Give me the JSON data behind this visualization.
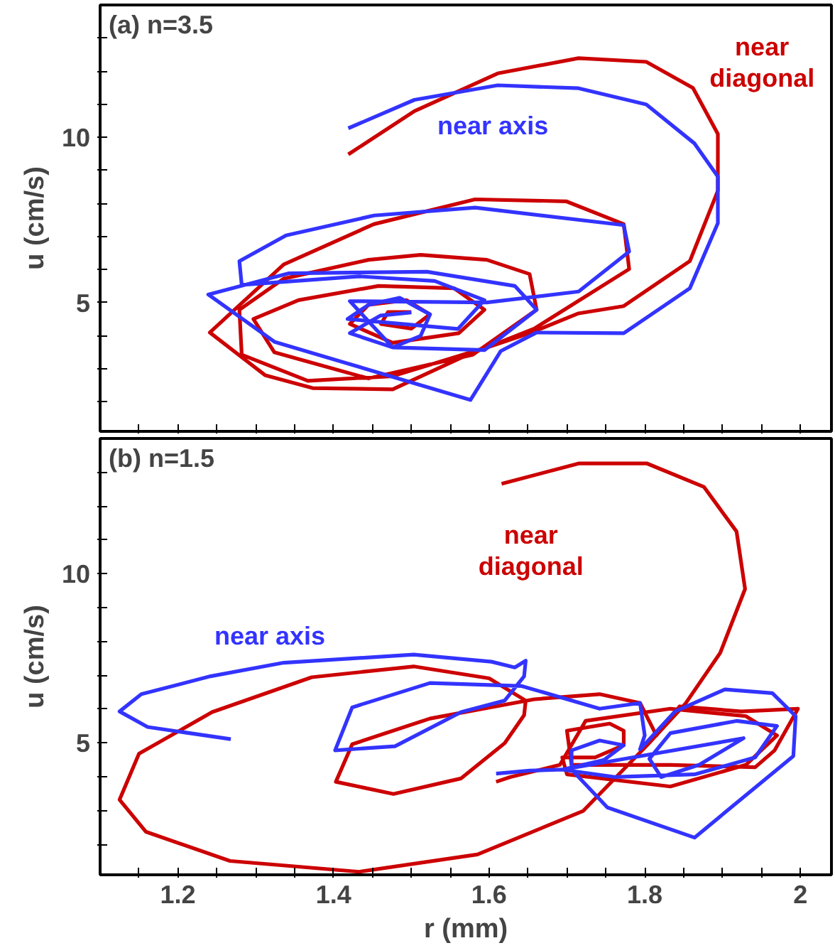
{
  "chart_data": [
    {
      "type": "line",
      "title": "(a) n=3.5",
      "ylabel": "u (cm/s)",
      "xlim": [
        1.1,
        2.04
      ],
      "ylim": [
        1.1,
        14.0
      ],
      "tick_labels": "y",
      "line_style": "solid",
      "xticks": [
        {
          "value": 1.15,
          "label": null
        },
        1.2,
        {
          "value": 1.25,
          "label": null
        },
        {
          "value": 1.3,
          "label": null
        },
        {
          "value": 1.35,
          "label": null
        },
        1.4,
        {
          "value": 1.45,
          "label": null
        },
        {
          "value": 1.5,
          "label": null
        },
        {
          "value": 1.55,
          "label": null
        },
        1.6,
        {
          "value": 1.65,
          "label": null
        },
        {
          "value": 1.7,
          "label": null
        },
        {
          "value": 1.75,
          "label": null
        },
        1.8,
        {
          "value": 1.85,
          "label": null
        },
        {
          "value": 1.9,
          "label": null
        },
        {
          "value": 1.95,
          "label": null
        },
        2
      ],
      "yticks": [
        {
          "value": 2,
          "label": null
        },
        {
          "value": 3,
          "label": null
        },
        {
          "value": 4,
          "label": null
        },
        5,
        {
          "value": 6,
          "label": null
        },
        {
          "value": 7,
          "label": null
        },
        {
          "value": 8,
          "label": null
        },
        {
          "value": 9,
          "label": null
        },
        10,
        {
          "value": 11,
          "label": null
        },
        {
          "value": 12,
          "label": null
        },
        {
          "value": 13,
          "label": null
        }
      ],
      "annotations": [
        "near diagonal",
        "near axis"
      ],
      "series": [
        {
          "color": "#cc0000",
          "x": [
            1.419,
            1.504,
            1.611,
            1.715,
            1.802,
            1.862,
            1.894,
            1.894,
            1.858,
            1.773,
            1.715,
            1.652,
            1.579,
            1.476,
            1.373,
            1.312,
            1.241,
            1.336,
            1.452,
            1.582,
            1.699,
            1.773,
            1.78,
            1.658,
            1.597,
            1.476,
            1.367,
            1.282,
            1.279,
            1.336,
            1.445,
            1.512,
            1.597,
            1.652,
            1.661,
            1.579,
            1.445,
            1.324,
            1.297,
            1.355,
            1.458,
            1.555,
            1.594,
            1.561,
            1.476,
            1.421,
            1.445,
            1.494,
            1.524,
            1.5,
            1.461,
            1.47,
            1.5
          ],
          "values": [
            9.48,
            10.79,
            11.93,
            12.39,
            12.28,
            11.49,
            10.1,
            8.38,
            6.25,
            4.89,
            4.67,
            4.07,
            3.49,
            2.37,
            2.41,
            2.8,
            4.09,
            6.15,
            7.37,
            8.12,
            8.06,
            7.37,
            6.01,
            4.21,
            3.64,
            2.77,
            2.63,
            3.42,
            4.78,
            5.72,
            6.29,
            6.44,
            6.29,
            5.86,
            4.78,
            3.42,
            2.7,
            3.49,
            4.5,
            5.07,
            5.5,
            5.43,
            4.78,
            4.07,
            3.78,
            4.35,
            4.93,
            5.07,
            4.64,
            4.21,
            4.35,
            4.71,
            4.71
          ]
        },
        {
          "color": "#3333ff",
          "x": [
            1.419,
            1.504,
            1.611,
            1.715,
            1.802,
            1.864,
            1.894,
            1.894,
            1.858,
            1.773,
            1.661,
            1.615,
            1.576,
            1.324,
            1.239,
            1.342,
            1.52,
            1.633,
            1.661,
            1.594,
            1.476,
            1.421,
            1.597,
            1.715,
            1.78,
            1.773,
            1.582,
            1.452,
            1.339,
            1.279,
            1.282,
            1.433,
            1.53,
            1.594,
            1.56,
            1.418,
            1.445,
            1.485,
            1.524,
            1.512,
            1.476,
            1.421,
            1.46,
            1.5
          ],
          "values": [
            10.27,
            11.13,
            11.57,
            11.48,
            10.99,
            9.81,
            8.81,
            7.4,
            5.43,
            4.07,
            4.09,
            3.53,
            2.05,
            3.81,
            5.24,
            5.88,
            5.93,
            5.5,
            4.78,
            3.56,
            3.64,
            5.04,
            5.0,
            5.33,
            6.54,
            7.34,
            7.87,
            7.63,
            7.03,
            6.25,
            5.53,
            5.79,
            5.65,
            5.07,
            4.2,
            4.5,
            4.93,
            5.14,
            4.64,
            3.99,
            3.64,
            4.07,
            4.6,
            4.7
          ]
        }
      ]
    },
    {
      "type": "line",
      "title": "(b) n=1.5",
      "xlabel": "r (mm)",
      "ylabel": "u (cm/s)",
      "xlim": [
        1.1,
        2.04
      ],
      "ylim": [
        1.1,
        14.0
      ],
      "line_style": "solid",
      "xticks": [
        {
          "value": 1.15,
          "label": null
        },
        1.2,
        {
          "value": 1.25,
          "label": null
        },
        {
          "value": 1.3,
          "label": null
        },
        {
          "value": 1.35,
          "label": null
        },
        1.4,
        {
          "value": 1.45,
          "label": null
        },
        {
          "value": 1.5,
          "label": null
        },
        {
          "value": 1.55,
          "label": null
        },
        1.6,
        {
          "value": 1.65,
          "label": null
        },
        {
          "value": 1.7,
          "label": null
        },
        {
          "value": 1.75,
          "label": null
        },
        1.8,
        {
          "value": 1.85,
          "label": null
        },
        {
          "value": 1.9,
          "label": null
        },
        {
          "value": 1.95,
          "label": null
        },
        2
      ],
      "yticks": [
        {
          "value": 2,
          "label": null
        },
        {
          "value": 3,
          "label": null
        },
        {
          "value": 4,
          "label": null
        },
        5,
        {
          "value": 6,
          "label": null
        },
        {
          "value": 7,
          "label": null
        },
        {
          "value": 8,
          "label": null
        },
        {
          "value": 9,
          "label": null
        },
        10,
        {
          "value": 11,
          "label": null
        },
        {
          "value": 12,
          "label": null
        },
        {
          "value": 13,
          "label": null
        }
      ],
      "annotations": [
        "near diagonal",
        "near axis"
      ],
      "series": [
        {
          "color": "#cc0000",
          "x": [
            1.616,
            1.715,
            1.803,
            1.876,
            1.918,
            1.929,
            1.897,
            1.852,
            1.803,
            1.721,
            1.585,
            1.433,
            1.267,
            1.159,
            1.125,
            1.15,
            1.244,
            1.372,
            1.503,
            1.6,
            1.647,
            1.645,
            1.62,
            1.564,
            1.477,
            1.403,
            1.424,
            1.524,
            1.658,
            1.742,
            1.794,
            1.815,
            1.845,
            1.924,
            1.997,
            1.967,
            1.942,
            1.833,
            1.706,
            1.7,
            1.755,
            1.773,
            1.773,
            1.736,
            1.694,
            1.7,
            1.833,
            1.93,
            1.97,
            1.93,
            1.833,
            1.724,
            1.691,
            1.627,
            1.609
          ],
          "values": [
            12.66,
            13.26,
            13.26,
            12.57,
            11.25,
            9.55,
            7.66,
            6.15,
            4.93,
            2.99,
            1.7,
            1.19,
            1.51,
            2.37,
            3.32,
            4.68,
            5.91,
            6.94,
            7.26,
            6.91,
            6.25,
            5.82,
            4.99,
            3.95,
            3.49,
            3.85,
            4.96,
            5.72,
            6.29,
            6.44,
            6.18,
            5.22,
            6.08,
            5.93,
            6.01,
            4.78,
            4.28,
            4.35,
            4.35,
            5.36,
            5.57,
            5.36,
            4.93,
            4.57,
            4.57,
            4.07,
            3.71,
            4.35,
            5.22,
            5.79,
            6.01,
            5.65,
            4.35,
            3.99,
            3.85
          ]
        },
        {
          "color": "#3333ff",
          "x": [
            1.268,
            1.161,
            1.125,
            1.153,
            1.242,
            1.336,
            1.503,
            1.603,
            1.633,
            1.647,
            1.645,
            1.62,
            1.564,
            1.479,
            1.402,
            1.424,
            1.524,
            1.642,
            1.742,
            1.794,
            1.8,
            1.794,
            1.839,
            1.903,
            1.964,
            1.994,
            1.991,
            1.864,
            1.752,
            1.706,
            1.706,
            1.742,
            1.773,
            1.748,
            1.694,
            1.761,
            1.864,
            1.942,
            1.97,
            1.918,
            1.833,
            1.806,
            1.821,
            1.87,
            1.927,
            1.694,
            1.652,
            1.609
          ],
          "values": [
            5.11,
            5.47,
            5.93,
            6.44,
            6.97,
            7.37,
            7.61,
            7.4,
            7.23,
            7.43,
            6.97,
            6.25,
            5.91,
            4.9,
            4.78,
            6.05,
            6.77,
            6.68,
            6.01,
            6.18,
            5.22,
            4.81,
            5.93,
            6.58,
            6.47,
            5.79,
            4.61,
            2.2,
            3.09,
            4.21,
            4.78,
            5.07,
            4.93,
            4.5,
            4.21,
            3.99,
            4.07,
            4.57,
            5.5,
            5.65,
            5.29,
            4.53,
            3.99,
            4.35,
            5.14,
            4.21,
            4.18,
            4.09
          ]
        }
      ]
    }
  ]
}
